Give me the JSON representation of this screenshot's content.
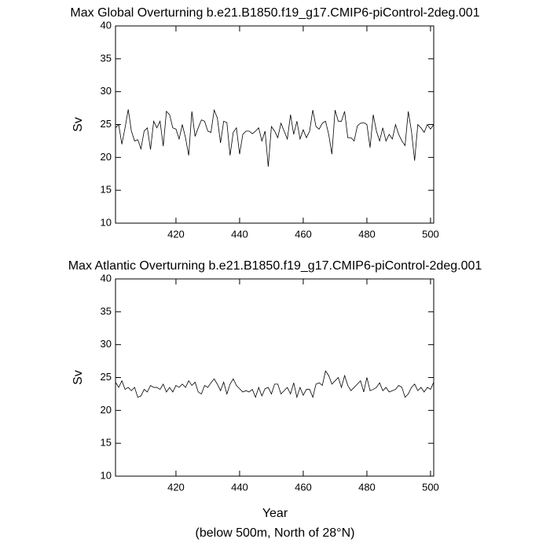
{
  "chart_data": [
    {
      "type": "line",
      "title": "Max Global Overturning b.e21.B1850.f19_g17.CMIP6-piControl-2deg.001",
      "ylabel": "Sv",
      "x": [
        401,
        402,
        403,
        404,
        405,
        406,
        407,
        408,
        409,
        410,
        411,
        412,
        413,
        414,
        415,
        416,
        417,
        418,
        419,
        420,
        421,
        422,
        423,
        424,
        425,
        426,
        427,
        428,
        429,
        430,
        431,
        432,
        433,
        434,
        435,
        436,
        437,
        438,
        439,
        440,
        441,
        442,
        443,
        444,
        445,
        446,
        447,
        448,
        449,
        450,
        451,
        452,
        453,
        454,
        455,
        456,
        457,
        458,
        459,
        460,
        461,
        462,
        463,
        464,
        465,
        466,
        467,
        468,
        469,
        470,
        471,
        472,
        473,
        474,
        475,
        476,
        477,
        478,
        479,
        480,
        481,
        482,
        483,
        484,
        485,
        486,
        487,
        488,
        489,
        490,
        491,
        492,
        493,
        494,
        495,
        496,
        497,
        498,
        499,
        500,
        501
      ],
      "series": [
        {
          "color": "#000000",
          "values": [
            24.5,
            25,
            22,
            24.5,
            27.3,
            24,
            22.5,
            22.7,
            21.3,
            24,
            24.5,
            21.2,
            25.5,
            24.5,
            25.5,
            21.7,
            27,
            26.5,
            24.5,
            24.3,
            22.8,
            25,
            23,
            20.3,
            27,
            23.2,
            24.5,
            25.7,
            25.5,
            24,
            23.8,
            27.2,
            26,
            22.2,
            25.5,
            25.3,
            20.3,
            23.8,
            24.5,
            20.5,
            23.5,
            24,
            24,
            23.6,
            24,
            24.5,
            22.5,
            24,
            18.6,
            24.7,
            24,
            23,
            25.2,
            24,
            22.8,
            26.5,
            23.5,
            25.5,
            22.8,
            24.2,
            23,
            24,
            27.2,
            24.7,
            24.3,
            25.2,
            25.5,
            23.5,
            20.5,
            27.2,
            25.5,
            25.5,
            27,
            23,
            23,
            22.5,
            24.8,
            25.2,
            25.3,
            25,
            21.5,
            26.5,
            24,
            22.5,
            24.5,
            22.5,
            23.5,
            22.8,
            25,
            23.5,
            22.5,
            21.8,
            27,
            24,
            19.5,
            25,
            24.5,
            23.8,
            25,
            24.3,
            25
          ]
        }
      ],
      "xlim": [
        401,
        501
      ],
      "xticks": [
        420,
        440,
        460,
        480,
        500
      ],
      "ylim": [
        10,
        40
      ],
      "yticks": [
        10,
        15,
        20,
        25,
        30,
        35,
        40
      ]
    },
    {
      "type": "line",
      "title": "Max Atlantic Overturning b.e21.B1850.f19_g17.CMIP6-piControl-2deg.001",
      "ylabel": "Sv",
      "xlabel": "Year",
      "x": [
        401,
        402,
        403,
        404,
        405,
        406,
        407,
        408,
        409,
        410,
        411,
        412,
        413,
        414,
        415,
        416,
        417,
        418,
        419,
        420,
        421,
        422,
        423,
        424,
        425,
        426,
        427,
        428,
        429,
        430,
        431,
        432,
        433,
        434,
        435,
        436,
        437,
        438,
        439,
        440,
        441,
        442,
        443,
        444,
        445,
        446,
        447,
        448,
        449,
        450,
        451,
        452,
        453,
        454,
        455,
        456,
        457,
        458,
        459,
        460,
        461,
        462,
        463,
        464,
        465,
        466,
        467,
        468,
        469,
        470,
        471,
        472,
        473,
        474,
        475,
        476,
        477,
        478,
        479,
        480,
        481,
        482,
        483,
        484,
        485,
        486,
        487,
        488,
        489,
        490,
        491,
        492,
        493,
        494,
        495,
        496,
        497,
        498,
        499,
        500,
        501
      ],
      "series": [
        {
          "color": "#000000",
          "values": [
            24.3,
            23.5,
            24.5,
            23.2,
            23.5,
            23,
            23.5,
            22,
            22.2,
            23.2,
            22.8,
            23.8,
            23.5,
            23.5,
            23.2,
            24,
            22.8,
            23.5,
            22.8,
            23.8,
            23.5,
            24,
            23.5,
            24.5,
            23.8,
            24.3,
            22.8,
            22.5,
            23.8,
            23.5,
            24.2,
            24.8,
            24,
            23,
            24.3,
            22.5,
            24,
            24.8,
            23.8,
            23.3,
            22.8,
            23,
            22.8,
            23.2,
            22,
            23.5,
            22.2,
            23.3,
            23.5,
            22.5,
            24,
            24,
            22.5,
            23,
            23.5,
            22.5,
            24.2,
            22,
            23.5,
            22.3,
            23.2,
            23.2,
            22,
            24,
            24.2,
            23.8,
            26,
            25.3,
            24,
            24.5,
            25,
            23.5,
            25.3,
            23.8,
            23,
            23.5,
            24,
            24.5,
            22.8,
            25,
            23,
            23.2,
            23.5,
            24.2,
            23,
            23.5,
            22.8,
            23,
            23.2,
            23.8,
            23.5,
            22,
            22.5,
            23.5,
            24,
            23,
            23.5,
            22.8,
            23.5,
            23.2,
            24.3
          ]
        }
      ],
      "xlim": [
        401,
        501
      ],
      "xticks": [
        420,
        440,
        460,
        480,
        500
      ],
      "ylim": [
        10,
        40
      ],
      "yticks": [
        10,
        15,
        20,
        25,
        30,
        35,
        40
      ]
    }
  ],
  "footnote": "(below 500m, North of 28°N)"
}
